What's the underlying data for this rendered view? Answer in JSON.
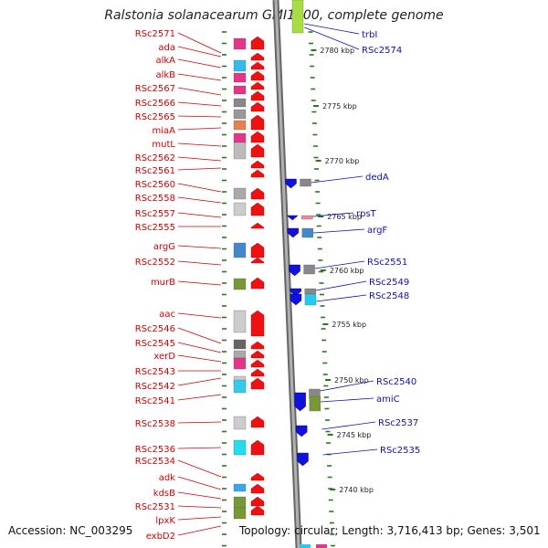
{
  "title": "Ralstonia solanacearum GMI1000, complete genome",
  "footer": {
    "accession": "Accession: NC_003295",
    "topology": "Topology: circular; Length: 3,716,413 bp; Genes: 3,501"
  },
  "colors": {
    "left_label": "#d40000",
    "right_label": "#1010b0",
    "tick": "#2a7a1a",
    "backbone": "#888888",
    "forward_arrow": "#ee1111",
    "reverse_arrow": "#1111dd"
  },
  "kbp_labels": [
    "2780 kbp",
    "2775 kbp",
    "2770 kbp",
    "2765 kbp",
    "2760 kbp",
    "2755 kbp",
    "2750 kbp",
    "2745 kbp",
    "2740 kbp"
  ],
  "left_labels": [
    "RSc2571",
    "ada",
    "alkA",
    "alkB",
    "RSc2567",
    "RSc2566",
    "RSc2565",
    "miaA",
    "mutL",
    "RSc2562",
    "RSc2561",
    "RSc2560",
    "RSc2558",
    "RSc2557",
    "RSc2555",
    "argG",
    "RSc2552",
    "murB",
    "aac",
    "RSc2546",
    "RSc2545",
    "xerD",
    "RSc2543",
    "RSc2542",
    "RSc2541",
    "RSc2538",
    "RSc2536",
    "RSc2534",
    "adk",
    "kdsB",
    "RSc2531",
    "lpxK",
    "exbD2"
  ],
  "right_labels": [
    "trbI",
    "RSc2574",
    "dedA",
    "rpsT",
    "argF",
    "RSc2551",
    "RSc2549",
    "RSc2548",
    "RSc2540",
    "amiC",
    "RSc2537",
    "RSc2535"
  ]
}
